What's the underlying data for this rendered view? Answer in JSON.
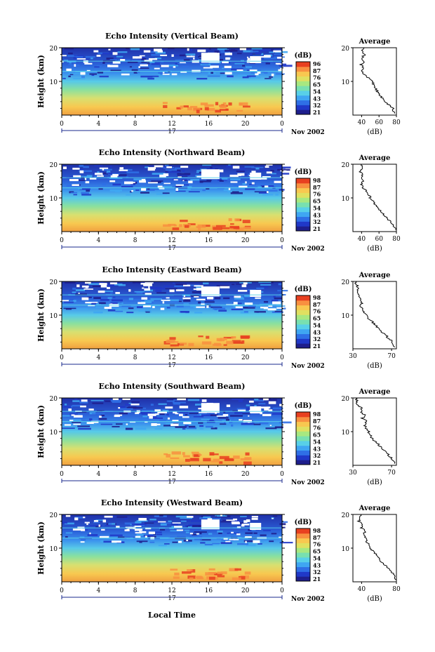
{
  "page": {
    "xlabel": "Local Time",
    "date_label": "Nov 2002",
    "day_label": "17",
    "colorbar_unit": "(dB)",
    "average_title": "Average",
    "average_xlabel": "(dB)",
    "ylabel": "Height (km)"
  },
  "palette": [
    "#1e1e8c",
    "#2038c8",
    "#2f6fe6",
    "#3fa6f2",
    "#58d0e8",
    "#78e0b0",
    "#a8e880",
    "#e0e060",
    "#f8c850",
    "#f89040",
    "#e84020"
  ],
  "colorbar_ticks": [
    [
      "96",
      "87",
      "76",
      "65",
      "54",
      "43",
      "32",
      "21"
    ],
    [
      "98",
      "87",
      "76",
      "65",
      "54",
      "43",
      "32",
      "21"
    ],
    [
      "98",
      "87",
      "76",
      "65",
      "54",
      "43",
      "32",
      "21"
    ],
    [
      "98",
      "87",
      "76",
      "65",
      "54",
      "43",
      "32",
      "21"
    ],
    [
      "98",
      "87",
      "76",
      "65",
      "54",
      "43",
      "32",
      "21"
    ]
  ],
  "chart_data": [
    {
      "type": "heatmap",
      "title": "Echo Intensity (Vertical Beam)",
      "x_ticks": [
        "0",
        "4",
        "8",
        "12",
        "16",
        "20",
        "0"
      ],
      "xlim": [
        0,
        24
      ],
      "y_ticks": [
        "20",
        "10"
      ],
      "ylim": [
        0,
        20
      ],
      "colorbar_range_db": [
        21,
        96
      ],
      "average_profile": {
        "type": "line",
        "xlim": [
          30,
          80
        ],
        "x_ticks": [
          "40",
          "60",
          "80"
        ],
        "y_ticks": [
          "20",
          "10"
        ],
        "points": [
          [
            78,
            0.5
          ],
          [
            76,
            2
          ],
          [
            72,
            3
          ],
          [
            67,
            4
          ],
          [
            64,
            5
          ],
          [
            60,
            6
          ],
          [
            58,
            7
          ],
          [
            56,
            8
          ],
          [
            54,
            9
          ],
          [
            52,
            10
          ],
          [
            48,
            11
          ],
          [
            43,
            12
          ],
          [
            40,
            13
          ],
          [
            42,
            14
          ],
          [
            39,
            15
          ],
          [
            43,
            16
          ],
          [
            40,
            17
          ],
          [
            44,
            18
          ],
          [
            41,
            19
          ],
          [
            43,
            20
          ]
        ]
      }
    },
    {
      "type": "heatmap",
      "title": "Echo Intensity (Northward Beam)",
      "x_ticks": [
        "0",
        "4",
        "8",
        "12",
        "16",
        "20",
        "0"
      ],
      "xlim": [
        0,
        24
      ],
      "y_ticks": [
        "20",
        "10"
      ],
      "ylim": [
        0,
        20
      ],
      "colorbar_range_db": [
        21,
        98
      ],
      "average_profile": {
        "type": "line",
        "xlim": [
          30,
          80
        ],
        "x_ticks": [
          "40",
          "60",
          "80"
        ],
        "y_ticks": [
          "20",
          "10"
        ],
        "points": [
          [
            79,
            0.5
          ],
          [
            77,
            2
          ],
          [
            73,
            3
          ],
          [
            69,
            4
          ],
          [
            66,
            5
          ],
          [
            62,
            6
          ],
          [
            60,
            7
          ],
          [
            56,
            8
          ],
          [
            53,
            9
          ],
          [
            50,
            10
          ],
          [
            48,
            11
          ],
          [
            46,
            12
          ],
          [
            42,
            13
          ],
          [
            40,
            14
          ],
          [
            42,
            15
          ],
          [
            39,
            16
          ],
          [
            41,
            17
          ],
          [
            38,
            18
          ],
          [
            41,
            19
          ],
          [
            40,
            20
          ]
        ]
      }
    },
    {
      "type": "heatmap",
      "title": "Echo Intensity (Eastward Beam)",
      "x_ticks": [
        "0",
        "4",
        "8",
        "12",
        "16",
        "20",
        "0"
      ],
      "xlim": [
        0,
        24
      ],
      "y_ticks": [
        "20",
        "10"
      ],
      "ylim": [
        0,
        20
      ],
      "colorbar_range_db": [
        21,
        98
      ],
      "average_profile": {
        "type": "line",
        "xlim": [
          30,
          75
        ],
        "x_ticks": [
          "30",
          "70"
        ],
        "y_ticks": [
          "20",
          "10"
        ],
        "points": [
          [
            73,
            0.5
          ],
          [
            71,
            2
          ],
          [
            67,
            3
          ],
          [
            64,
            4
          ],
          [
            60,
            5
          ],
          [
            56,
            6
          ],
          [
            53,
            7
          ],
          [
            50,
            8
          ],
          [
            46,
            9
          ],
          [
            44,
            10
          ],
          [
            42,
            11
          ],
          [
            40,
            12
          ],
          [
            38,
            13
          ],
          [
            40,
            14
          ],
          [
            37,
            15
          ],
          [
            36,
            16
          ],
          [
            35,
            17
          ],
          [
            36,
            18
          ],
          [
            34,
            19
          ],
          [
            33,
            20
          ]
        ]
      }
    },
    {
      "type": "heatmap",
      "title": "Echo Intensity (Southward Beam)",
      "x_ticks": [
        "0",
        "4",
        "8",
        "12",
        "16",
        "20",
        "0"
      ],
      "xlim": [
        0,
        24
      ],
      "y_ticks": [
        "20",
        "10"
      ],
      "ylim": [
        0,
        20
      ],
      "colorbar_range_db": [
        21,
        98
      ],
      "average_profile": {
        "type": "line",
        "xlim": [
          30,
          75
        ],
        "x_ticks": [
          "30",
          "70"
        ],
        "y_ticks": [
          "20",
          "10"
        ],
        "points": [
          [
            73,
            0.5
          ],
          [
            70,
            2
          ],
          [
            67,
            3
          ],
          [
            64,
            4
          ],
          [
            60,
            5
          ],
          [
            57,
            6
          ],
          [
            53,
            7
          ],
          [
            50,
            8
          ],
          [
            48,
            9
          ],
          [
            46,
            10
          ],
          [
            44,
            11
          ],
          [
            42,
            12
          ],
          [
            44,
            13
          ],
          [
            40,
            14
          ],
          [
            42,
            15
          ],
          [
            38,
            16
          ],
          [
            39,
            17
          ],
          [
            35,
            18
          ],
          [
            34,
            19
          ],
          [
            33,
            20
          ]
        ]
      }
    },
    {
      "type": "heatmap",
      "title": "Echo Intensity (Westward Beam)",
      "x_ticks": [
        "0",
        "4",
        "8",
        "12",
        "16",
        "20",
        "0"
      ],
      "xlim": [
        0,
        24
      ],
      "y_ticks": [
        "20",
        "10"
      ],
      "ylim": [
        0,
        20
      ],
      "colorbar_range_db": [
        21,
        98
      ],
      "average_profile": {
        "type": "line",
        "xlim": [
          30,
          80
        ],
        "x_ticks": [
          "40",
          "80"
        ],
        "y_ticks": [
          "20",
          "10"
        ],
        "points": [
          [
            79,
            0.5
          ],
          [
            77,
            2
          ],
          [
            74,
            3
          ],
          [
            70,
            4
          ],
          [
            67,
            5
          ],
          [
            63,
            6
          ],
          [
            60,
            7
          ],
          [
            57,
            8
          ],
          [
            54,
            9
          ],
          [
            50,
            10
          ],
          [
            48,
            11
          ],
          [
            46,
            12
          ],
          [
            44,
            13
          ],
          [
            42,
            14
          ],
          [
            44,
            15
          ],
          [
            40,
            16
          ],
          [
            42,
            17
          ],
          [
            37,
            18
          ],
          [
            38,
            19
          ],
          [
            39,
            20
          ]
        ]
      }
    }
  ]
}
